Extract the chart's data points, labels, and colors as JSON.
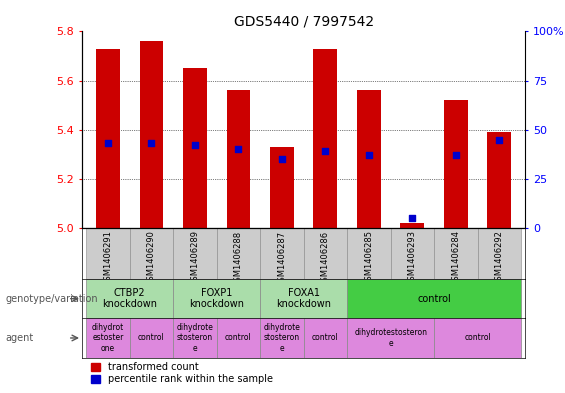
{
  "title": "GDS5440 / 7997542",
  "samples": [
    "GSM1406291",
    "GSM1406290",
    "GSM1406289",
    "GSM1406288",
    "GSM1406287",
    "GSM1406286",
    "GSM1406285",
    "GSM1406293",
    "GSM1406284",
    "GSM1406292"
  ],
  "bar_values": [
    5.73,
    5.76,
    5.65,
    5.56,
    5.33,
    5.73,
    5.56,
    5.02,
    5.52,
    5.39
  ],
  "percentile_pct": [
    43,
    43,
    42,
    40,
    35,
    39,
    37,
    5,
    37,
    45
  ],
  "ylim_left": [
    5.0,
    5.8
  ],
  "ylim_right": [
    0,
    100
  ],
  "yticks_left": [
    5.0,
    5.2,
    5.4,
    5.6,
    5.8
  ],
  "yticks_right": [
    0,
    25,
    50,
    75,
    100
  ],
  "ytick_right_labels": [
    "0",
    "25",
    "50",
    "75",
    "100%"
  ],
  "bar_color": "#cc0000",
  "dot_color": "#0000cc",
  "bar_width": 0.55,
  "genotype_groups": [
    {
      "label": "CTBP2\nknockdown",
      "start": 0,
      "end": 2,
      "color": "#aaddaa"
    },
    {
      "label": "FOXP1\nknockdown",
      "start": 2,
      "end": 4,
      "color": "#aaddaa"
    },
    {
      "label": "FOXA1\nknockdown",
      "start": 4,
      "end": 6,
      "color": "#aaddaa"
    },
    {
      "label": "control",
      "start": 6,
      "end": 10,
      "color": "#44cc44"
    }
  ],
  "agent_groups": [
    {
      "label": "dihydrot\nestoster\none",
      "start": 0,
      "end": 1,
      "color": "#dd88dd"
    },
    {
      "label": "control",
      "start": 1,
      "end": 2,
      "color": "#dd88dd"
    },
    {
      "label": "dihydrote\nstosteron\ne",
      "start": 2,
      "end": 3,
      "color": "#dd88dd"
    },
    {
      "label": "control",
      "start": 3,
      "end": 4,
      "color": "#dd88dd"
    },
    {
      "label": "dihydrote\nstosteron\ne",
      "start": 4,
      "end": 5,
      "color": "#dd88dd"
    },
    {
      "label": "control",
      "start": 5,
      "end": 6,
      "color": "#dd88dd"
    },
    {
      "label": "dihydrotestosteron\ne",
      "start": 6,
      "end": 8,
      "color": "#dd88dd"
    },
    {
      "label": "control",
      "start": 8,
      "end": 10,
      "color": "#dd88dd"
    }
  ],
  "legend_red": "transformed count",
  "legend_blue": "percentile rank within the sample",
  "genotype_label": "genotype/variation",
  "agent_label": "agent",
  "title_fontsize": 10,
  "axis_fontsize": 8,
  "sample_fontsize": 6,
  "group_fontsize": 7,
  "agent_fontsize": 5.5,
  "legend_fontsize": 7
}
